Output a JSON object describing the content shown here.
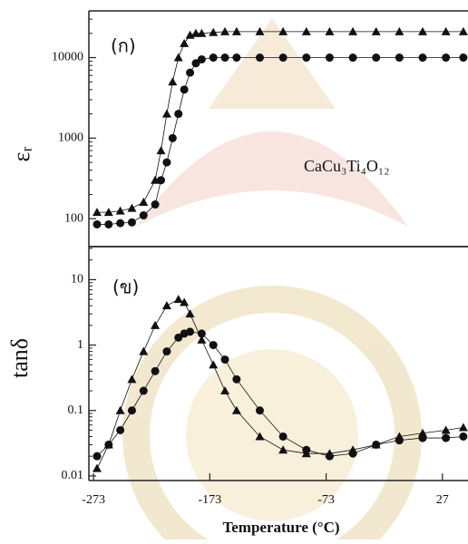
{
  "chart_data": [
    {
      "type": "scatter",
      "label": "(ก)",
      "annotation": "CaCu₃Ti₄O₁₂",
      "y_label": "εᵣ",
      "log_scale_y": true,
      "xlim": [
        -277,
        49
      ],
      "ylim": [
        45,
        38000
      ],
      "yticks": [
        100,
        1000,
        10000
      ],
      "x": [
        -270,
        -260,
        -250,
        -240,
        -230,
        -220,
        -215,
        -210,
        -205,
        -200,
        -195,
        -190,
        -185,
        -180,
        -170,
        -160,
        -150,
        -130,
        -110,
        -90,
        -70,
        -50,
        -30,
        -10,
        10,
        30,
        45
      ],
      "series": [
        {
          "marker": "triangle",
          "color": "#111111",
          "values": [
            120,
            120,
            125,
            135,
            160,
            300,
            700,
            2000,
            5000,
            10000,
            15000,
            19000,
            20000,
            20000,
            20500,
            21000,
            21000,
            21000,
            21000,
            21000,
            21000,
            21000,
            21000,
            21000,
            21000,
            21000,
            21000
          ]
        },
        {
          "marker": "circle",
          "color": "#111111",
          "values": [
            85,
            85,
            88,
            90,
            110,
            150,
            300,
            500,
            1000,
            2000,
            4000,
            6500,
            8500,
            9500,
            10000,
            10000,
            10000,
            10000,
            10000,
            10000,
            10000,
            10000,
            10000,
            10000,
            10000,
            10000,
            10000
          ]
        }
      ]
    },
    {
      "type": "scatter",
      "label": "(ข)",
      "y_label": "tanδ",
      "x_label": "Temperature (°C)",
      "log_scale_y": true,
      "xlim": [
        -277,
        49
      ],
      "ylim": [
        0.0085,
        32
      ],
      "yticks": [
        0.01,
        0.1,
        1,
        10
      ],
      "xticks": [
        -273,
        -173,
        -73,
        27
      ],
      "x": [
        -270,
        -260,
        -250,
        -240,
        -230,
        -220,
        -210,
        -200,
        -195,
        -190,
        -180,
        -170,
        -160,
        -150,
        -130,
        -110,
        -90,
        -70,
        -50,
        -30,
        -10,
        10,
        30,
        45
      ],
      "series": [
        {
          "marker": "triangle",
          "color": "#111111",
          "values": [
            0.013,
            0.03,
            0.1,
            0.3,
            0.8,
            2,
            4,
            5,
            4.5,
            3,
            1.2,
            0.5,
            0.2,
            0.1,
            0.04,
            0.025,
            0.022,
            0.022,
            0.025,
            0.03,
            0.04,
            0.045,
            0.05,
            0.055
          ]
        },
        {
          "marker": "circle",
          "color": "#111111",
          "values": [
            0.02,
            0.03,
            0.05,
            0.1,
            0.2,
            0.4,
            0.8,
            1.3,
            1.5,
            1.6,
            1.5,
            1.0,
            0.6,
            0.3,
            0.1,
            0.04,
            0.025,
            0.02,
            0.022,
            0.03,
            0.035,
            0.038,
            0.038,
            0.04
          ]
        }
      ]
    }
  ]
}
